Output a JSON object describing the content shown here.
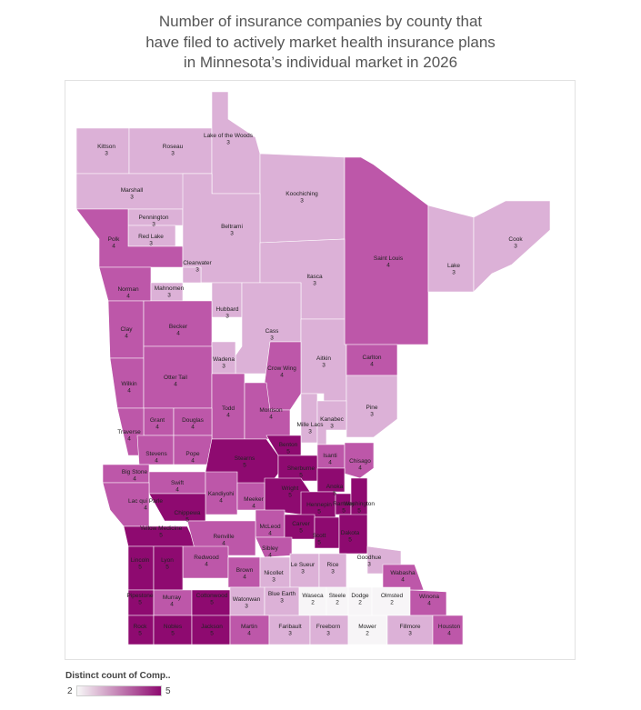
{
  "title_lines": [
    "Number of insurance companies by county that",
    "have filed to actively market health insurance plans",
    "in Minnesota’s individual market in 2026"
  ],
  "legend": {
    "title": "Distinct count of Comp..",
    "min": "2",
    "max": "5"
  },
  "colors": {
    "2": "#f7f5f7",
    "3": "#dcb1d7",
    "4": "#bd57a9",
    "5": "#8e0a70"
  },
  "counties": [
    {
      "name": "Kittson",
      "value": 3
    },
    {
      "name": "Roseau",
      "value": 3
    },
    {
      "name": "Lake of the Woods",
      "value": 3
    },
    {
      "name": "Marshall",
      "value": 3
    },
    {
      "name": "Koochiching",
      "value": 3
    },
    {
      "name": "Pennington",
      "value": 3
    },
    {
      "name": "Red Lake",
      "value": 3
    },
    {
      "name": "Polk",
      "value": 4
    },
    {
      "name": "Beltrami",
      "value": 3
    },
    {
      "name": "Saint Louis",
      "value": 4
    },
    {
      "name": "Lake",
      "value": 3
    },
    {
      "name": "Cook",
      "value": 3
    },
    {
      "name": "Clearwater",
      "value": 3
    },
    {
      "name": "Itasca",
      "value": 3
    },
    {
      "name": "Norman",
      "value": 4
    },
    {
      "name": "Mahnomen",
      "value": 3
    },
    {
      "name": "Hubbard",
      "value": 3
    },
    {
      "name": "Cass",
      "value": 3
    },
    {
      "name": "Clay",
      "value": 4
    },
    {
      "name": "Becker",
      "value": 4
    },
    {
      "name": "Aitkin",
      "value": 3
    },
    {
      "name": "Carlton",
      "value": 4
    },
    {
      "name": "Wadena",
      "value": 3
    },
    {
      "name": "Crow Wing",
      "value": 4
    },
    {
      "name": "Wilkin",
      "value": 4
    },
    {
      "name": "Otter Tail",
      "value": 4
    },
    {
      "name": "Pine",
      "value": 3
    },
    {
      "name": "Todd",
      "value": 4
    },
    {
      "name": "Morrison",
      "value": 4
    },
    {
      "name": "Mille Lacs",
      "value": 3
    },
    {
      "name": "Kanabec",
      "value": 3
    },
    {
      "name": "Grant",
      "value": 4
    },
    {
      "name": "Douglas",
      "value": 4
    },
    {
      "name": "Traverse",
      "value": 4
    },
    {
      "name": "Benton",
      "value": 5
    },
    {
      "name": "Stevens",
      "value": 4
    },
    {
      "name": "Pope",
      "value": 4
    },
    {
      "name": "Stearns",
      "value": 5
    },
    {
      "name": "Isanti",
      "value": 4
    },
    {
      "name": "Chisago",
      "value": 4
    },
    {
      "name": "Big Stone",
      "value": 4
    },
    {
      "name": "Sherburne",
      "value": 5
    },
    {
      "name": "Swift",
      "value": 4
    },
    {
      "name": "Anoka",
      "value": 5
    },
    {
      "name": "Kandiyohi",
      "value": 4
    },
    {
      "name": "Wright",
      "value": 5
    },
    {
      "name": "Meeker",
      "value": 4
    },
    {
      "name": "Lac qui Parle",
      "value": 4
    },
    {
      "name": "Chippewa",
      "value": 5
    },
    {
      "name": "Hennepin",
      "value": 5
    },
    {
      "name": "Ramsey",
      "value": 5
    },
    {
      "name": "Washington",
      "value": 5
    },
    {
      "name": "McLeod",
      "value": 4
    },
    {
      "name": "Carver",
      "value": 5
    },
    {
      "name": "Yellow Medicine",
      "value": 5
    },
    {
      "name": "Renville",
      "value": 4
    },
    {
      "name": "Scott",
      "value": 5
    },
    {
      "name": "Dakota",
      "value": 5
    },
    {
      "name": "Sibley",
      "value": 4
    },
    {
      "name": "Goodhue",
      "value": 3
    },
    {
      "name": "Redwood",
      "value": 4
    },
    {
      "name": "Lincoln",
      "value": 5
    },
    {
      "name": "Lyon",
      "value": 5
    },
    {
      "name": "Brown",
      "value": 4
    },
    {
      "name": "Nicollet",
      "value": 3
    },
    {
      "name": "Le Sueur",
      "value": 3
    },
    {
      "name": "Rice",
      "value": 3
    },
    {
      "name": "Wabasha",
      "value": 4
    },
    {
      "name": "Pipestone",
      "value": 5
    },
    {
      "name": "Murray",
      "value": 4
    },
    {
      "name": "Cottonwood",
      "value": 5
    },
    {
      "name": "Watonwan",
      "value": 3
    },
    {
      "name": "Blue Earth",
      "value": 3
    },
    {
      "name": "Waseca",
      "value": 2
    },
    {
      "name": "Steele",
      "value": 2
    },
    {
      "name": "Dodge",
      "value": 2
    },
    {
      "name": "Olmsted",
      "value": 2
    },
    {
      "name": "Winona",
      "value": 4
    },
    {
      "name": "Rock",
      "value": 5
    },
    {
      "name": "Nobles",
      "value": 5
    },
    {
      "name": "Jackson",
      "value": 5
    },
    {
      "name": "Martin",
      "value": 4
    },
    {
      "name": "Faribault",
      "value": 3
    },
    {
      "name": "Freeborn",
      "value": 3
    },
    {
      "name": "Mower",
      "value": 2
    },
    {
      "name": "Fillmore",
      "value": 3
    },
    {
      "name": "Houston",
      "value": 4
    }
  ]
}
